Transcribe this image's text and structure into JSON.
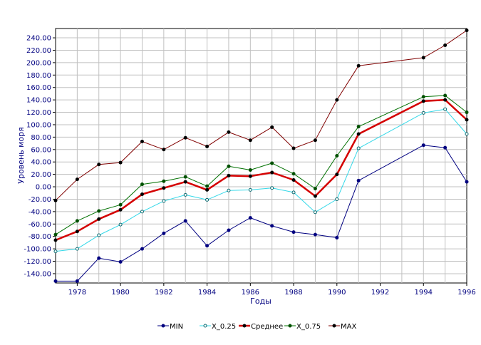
{
  "chart_data": {
    "type": "line",
    "xlabel": "Годы",
    "ylabel": "Уровень моря",
    "xlim": [
      1977,
      1996
    ],
    "ylim": [
      -155,
      255
    ],
    "x_ticks": [
      1978,
      1980,
      1982,
      1984,
      1986,
      1988,
      1990,
      1992,
      1994,
      1996
    ],
    "y_ticks": [
      -140,
      -120,
      -100,
      -80,
      -60,
      -40,
      -20,
      0,
      20,
      40,
      60,
      80,
      100,
      120,
      140,
      160,
      180,
      200,
      220,
      240
    ],
    "y_tick_labels": [
      "-140.00",
      "-120.00",
      "-100.00",
      "-80.00",
      "-60.00",
      "-40.00",
      "-20.00",
      "0.00",
      "20.00",
      "40.00",
      "60.00",
      "80.00",
      "100.00",
      "120.00",
      "140.00",
      "160.00",
      "180.00",
      "200.00",
      "220.00",
      "240.00"
    ],
    "grid": true,
    "legend_position": "bottom",
    "x": [
      1977,
      1978,
      1979,
      1980,
      1981,
      1982,
      1983,
      1984,
      1985,
      1986,
      1987,
      1988,
      1989,
      1990,
      1991,
      1994,
      1995,
      1996
    ],
    "series": [
      {
        "name": "MIN",
        "color": "#000080",
        "marker": "#000080",
        "width": 1,
        "values": [
          -152,
          -152,
          -115,
          -121,
          -100,
          -75,
          -55,
          -95,
          -70,
          -50,
          -63,
          -73,
          -77,
          -82,
          10,
          67,
          63,
          8
        ]
      },
      {
        "name": "X_0.25",
        "color": "#33d8e8",
        "marker": "#0a6a70",
        "width": 1,
        "values": [
          -104,
          -100,
          -78,
          -61,
          -40,
          -23,
          -13,
          -21,
          -6,
          -5,
          -2,
          -9,
          -41,
          -20,
          62,
          119,
          125,
          85
        ]
      },
      {
        "name": "Среднее",
        "color": "#d40000",
        "marker": "#000000",
        "width": 2.5,
        "values": [
          -86,
          -72,
          -52,
          -37,
          -12,
          -2,
          8,
          -5,
          18,
          17,
          23,
          11,
          -15,
          20,
          85,
          138,
          140,
          108
        ]
      },
      {
        "name": "X_0.75",
        "color": "#007000",
        "marker": "#005000",
        "width": 1,
        "values": [
          -77,
          -55,
          -39,
          -29,
          4,
          9,
          16,
          1,
          33,
          27,
          38,
          21,
          -3,
          50,
          97,
          145,
          147,
          120
        ]
      },
      {
        "name": "MAX",
        "color": "#800000",
        "marker": "#000000",
        "width": 1,
        "values": [
          -22,
          12,
          36,
          39,
          73,
          60,
          79,
          65,
          88,
          75,
          96,
          62,
          75,
          140,
          195,
          208,
          228,
          252
        ]
      }
    ]
  }
}
